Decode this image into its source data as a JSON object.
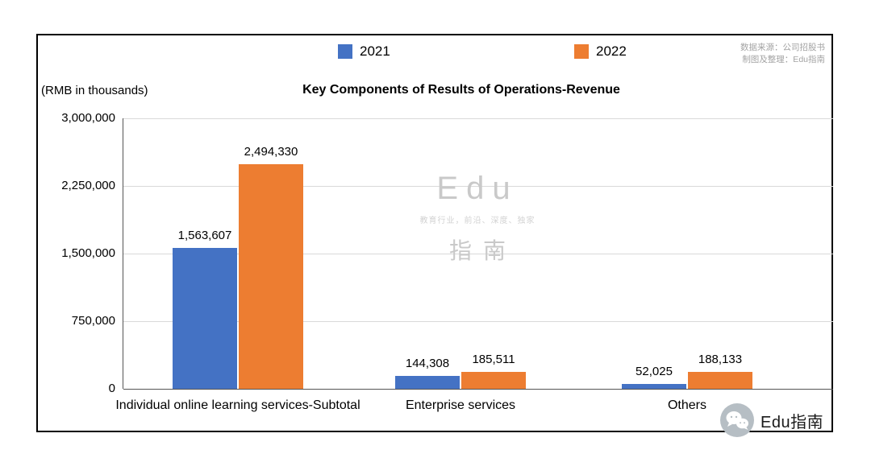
{
  "source_note": {
    "line1": "数据来源：公司招股书",
    "line2": "制图及整理：Edu指南"
  },
  "chart_data": {
    "type": "bar",
    "title": "Key Components of Results of Operations-Revenue",
    "ylabel": "(RMB in thousands)",
    "xlabel": "",
    "categories": [
      "Individual online learning services-Subtotal",
      "Enterprise services",
      "Others"
    ],
    "series": [
      {
        "name": "2021",
        "color": "#4472C4",
        "values": [
          1563607,
          144308,
          52025
        ],
        "labels": [
          "1,563,607",
          "144,308",
          "52,025"
        ]
      },
      {
        "name": "2022",
        "color": "#ED7D31",
        "values": [
          2494330,
          185511,
          188133
        ],
        "labels": [
          "2,494,330",
          "185,511",
          "188,133"
        ]
      }
    ],
    "ylim": [
      0,
      3000000
    ],
    "yticks": [
      "3,000,000",
      "2,250,000",
      "1,500,000",
      "750,000",
      "0"
    ],
    "grid": true,
    "legend_position": "top"
  },
  "watermark": {
    "line1": "Edu",
    "line2": "教育行业，前沿、深度、独家",
    "line3": "指南"
  },
  "footer": {
    "brand": "Edu指南"
  }
}
